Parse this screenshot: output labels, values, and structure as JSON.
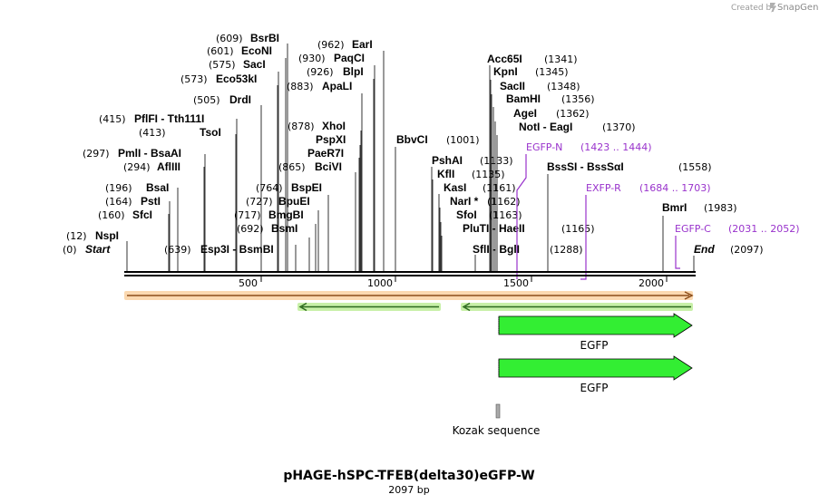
{
  "credit": {
    "prefix": "Created by",
    "brand": "SnapGene"
  },
  "plasmid": {
    "name": "pHAGE-hSPC-TFEB(delta30)eGFP-W",
    "length_label": "2097 bp",
    "length": 2097
  },
  "ruler": {
    "ticks": [
      500,
      1000,
      1500,
      2000
    ]
  },
  "sites": [
    {
      "pos": "(12)",
      "name": "NspI",
      "bp": 12
    },
    {
      "pos": "(0)",
      "name": "Start",
      "bp": 0
    },
    {
      "pos": "(160)",
      "name": "SfcI",
      "bp": 160
    },
    {
      "pos": "(164)",
      "name": "PstI",
      "bp": 164
    },
    {
      "pos": "(196)",
      "name": "BsaI",
      "bp": 196
    },
    {
      "pos": "(294)",
      "name": "AflIII",
      "bp": 294
    },
    {
      "pos": "(297)",
      "name": "PmlI - BsaAI",
      "bp": 297
    },
    {
      "pos": "(413)",
      "name": "TsoI",
      "bp": 413
    },
    {
      "pos": "(415)",
      "name": "PflFI - Tth111I",
      "bp": 415
    },
    {
      "pos": "(505)",
      "name": "DrdI",
      "bp": 505
    },
    {
      "pos": "(573)",
      "name": "Eco53kI",
      "bp": 573
    },
    {
      "pos": "(575)",
      "name": "SacI",
      "bp": 575
    },
    {
      "pos": "(601)",
      "name": "EcoNI",
      "bp": 601
    },
    {
      "pos": "(609)",
      "name": "BsrBI",
      "bp": 609
    },
    {
      "pos": "(639)",
      "name": "Esp3I - BsmBI",
      "bp": 639
    },
    {
      "pos": "(692)",
      "name": "BsmI",
      "bp": 692
    },
    {
      "pos": "(717)",
      "name": "BmgBI",
      "bp": 717
    },
    {
      "pos": "(727)",
      "name": "BpuEI",
      "bp": 727
    },
    {
      "pos": "(764)",
      "name": "BspEI",
      "bp": 764
    },
    {
      "pos": "(865)",
      "name": "BciVI",
      "bp": 865
    },
    {
      "pos": "",
      "name": "PaeR7I",
      "bp": 878
    },
    {
      "pos": "",
      "name": "PspXI",
      "bp": 878
    },
    {
      "pos": "(878)",
      "name": "XhoI",
      "bp": 878
    },
    {
      "pos": "(883)",
      "name": "ApaLI",
      "bp": 883
    },
    {
      "pos": "(926)",
      "name": "BlpI",
      "bp": 926
    },
    {
      "pos": "(930)",
      "name": "PaqCI",
      "bp": 930
    },
    {
      "pos": "(962)",
      "name": "EarI",
      "bp": 962
    },
    {
      "pos": "(1001)",
      "name": "BbvCI",
      "bp": 1001
    },
    {
      "pos": "(1133)",
      "name": "PshAI",
      "bp": 1133
    },
    {
      "pos": "(1135)",
      "name": "KflI",
      "bp": 1135
    },
    {
      "pos": "(1161)",
      "name": "KasI",
      "bp": 1161
    },
    {
      "pos": "(1162)",
      "name": "NarI *",
      "bp": 1162
    },
    {
      "pos": "(1163)",
      "name": "SfoI",
      "bp": 1163
    },
    {
      "pos": "(1165)",
      "name": "PluTI - HaeII",
      "bp": 1165
    },
    {
      "pos": "(1288)",
      "name": "SflI - BglI",
      "bp": 1288
    },
    {
      "pos": "(1341)",
      "name": "Acc65I",
      "bp": 1341
    },
    {
      "pos": "(1345)",
      "name": "KpnI",
      "bp": 1345
    },
    {
      "pos": "(1348)",
      "name": "SacII",
      "bp": 1348
    },
    {
      "pos": "(1356)",
      "name": "BamHI",
      "bp": 1356
    },
    {
      "pos": "(1362)",
      "name": "AgeI",
      "bp": 1362
    },
    {
      "pos": "(1370)",
      "name": "NotI - EagI",
      "bp": 1370
    },
    {
      "pos": "(1558)",
      "name": "BssSI - BssSαI",
      "bp": 1558
    },
    {
      "pos": "(1983)",
      "name": "BmrI",
      "bp": 1983
    },
    {
      "pos": "(2097)",
      "name": "End",
      "bp": 2097
    }
  ],
  "primers": [
    {
      "name": "EGFP-N",
      "range": "(1423 .. 1444)",
      "start": 1423,
      "end": 1444
    },
    {
      "name": "EXFP-R",
      "range": "(1684 .. 1703)",
      "start": 1684,
      "end": 1703
    },
    {
      "name": "EGFP-C",
      "range": "(2031 .. 2052)",
      "start": 2031,
      "end": 2052
    }
  ],
  "features": [
    {
      "name": "EGFP",
      "start": 1380,
      "end": 2097
    },
    {
      "name": "EGFP",
      "start": 1380,
      "end": 2097
    },
    {
      "name": "Kozak sequence",
      "start": 1374,
      "end": 1379
    }
  ],
  "colors": {
    "feature_green": "#33ee33",
    "primer_purple": "#9933cc",
    "orf_orange": "#f5a25d",
    "orf_line": "#8c4d1a",
    "orf_green": "#aaee88",
    "orf_green_line": "#2d6a1f",
    "kozak_gray": "#aaaaaa"
  }
}
